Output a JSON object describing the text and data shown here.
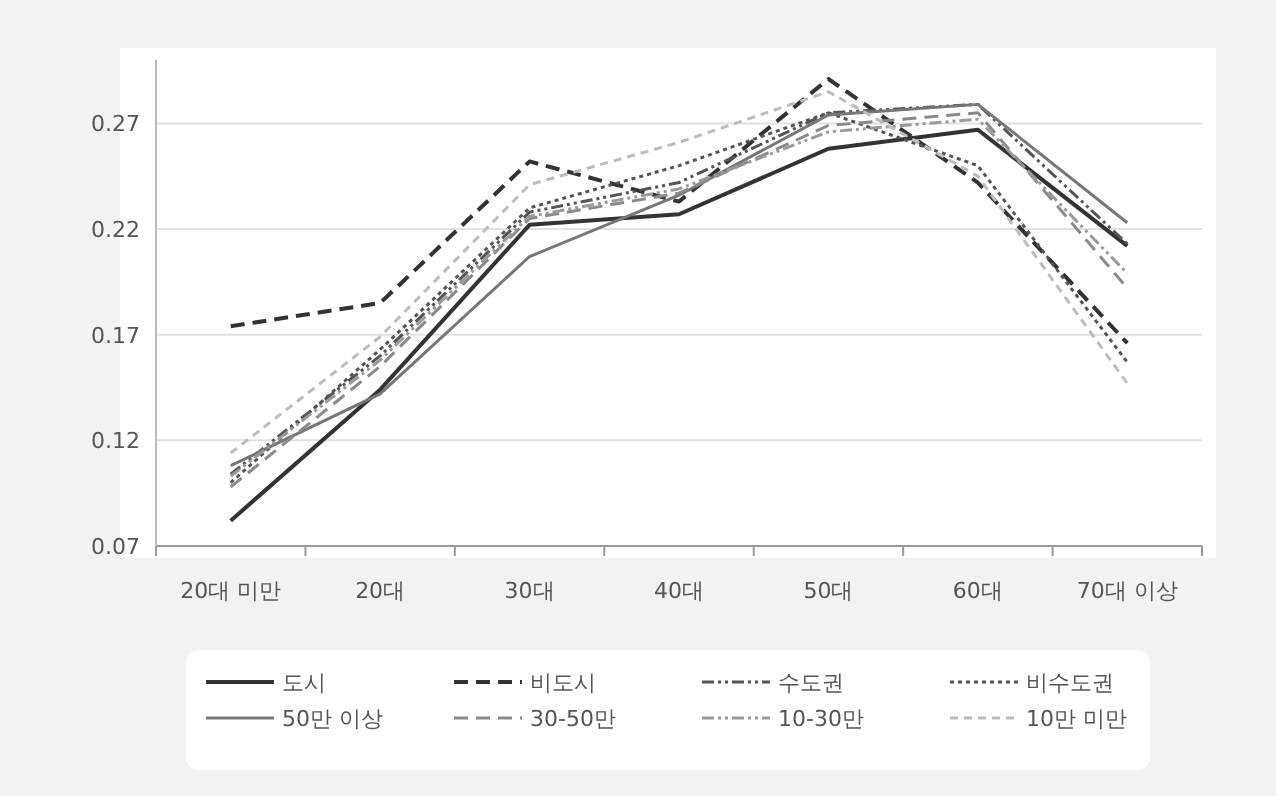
{
  "chart_data": {
    "type": "line",
    "categories": [
      "20대 미만",
      "20대",
      "30대",
      "40대",
      "50대",
      "60대",
      "70대 이상"
    ],
    "ylim": [
      0.07,
      0.3
    ],
    "yticks": [
      0.07,
      0.12,
      0.17,
      0.22,
      0.27
    ],
    "grid": "y",
    "legend": "bottom",
    "series": [
      {
        "name": "도시",
        "color": "#333333",
        "line_style": "solid",
        "values": [
          0.082,
          0.144,
          0.222,
          0.227,
          0.258,
          0.267,
          0.212
        ]
      },
      {
        "name": "비도시",
        "color": "#333333",
        "line_style": "dashed",
        "values": [
          0.174,
          0.185,
          0.252,
          0.233,
          0.291,
          0.242,
          0.166
        ]
      },
      {
        "name": "수도권",
        "color": "#555555",
        "line_style": "dashdot",
        "values": [
          0.104,
          0.16,
          0.228,
          0.242,
          0.275,
          0.279,
          0.213
        ]
      },
      {
        "name": "비수도권",
        "color": "#555555",
        "line_style": "dotted",
        "values": [
          0.1,
          0.163,
          0.23,
          0.25,
          0.275,
          0.25,
          0.157
        ]
      },
      {
        "name": "50만 이상",
        "color": "#777777",
        "line_style": "solid",
        "values": [
          0.108,
          0.142,
          0.207,
          0.236,
          0.274,
          0.279,
          0.223
        ]
      },
      {
        "name": "30-50만",
        "color": "#8a8a8a",
        "line_style": "dashed",
        "values": [
          0.098,
          0.155,
          0.225,
          0.237,
          0.269,
          0.275,
          0.192
        ]
      },
      {
        "name": "10-30만",
        "color": "#9a9a9a",
        "line_style": "dashdot",
        "values": [
          0.103,
          0.158,
          0.226,
          0.239,
          0.266,
          0.272,
          0.199
        ]
      },
      {
        "name": "10만 미만",
        "color": "#bdbdbd",
        "line_style": "dashed",
        "values": [
          0.114,
          0.169,
          0.241,
          0.261,
          0.285,
          0.245,
          0.147
        ]
      }
    ]
  }
}
